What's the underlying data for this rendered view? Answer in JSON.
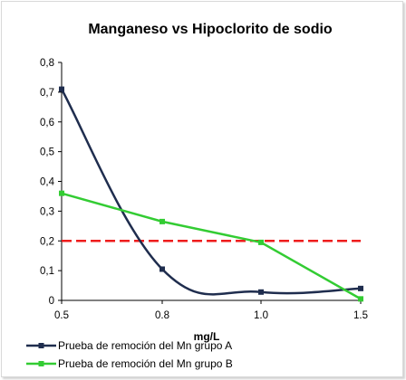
{
  "chart_data": {
    "type": "line",
    "title": "Manganeso vs Hipoclorito de sodio",
    "xlabel": "mg/L",
    "ylabel": "",
    "x_ticks": [
      "0.5",
      "0.8",
      "1.0",
      "1.5"
    ],
    "ylim": [
      0,
      0.8
    ],
    "y_ticks": [
      "0",
      "0,1",
      "0,2",
      "0,3",
      "0,4",
      "0,5",
      "0,6",
      "0,7",
      "0,8"
    ],
    "grid": false,
    "legend_position": "bottom",
    "series": [
      {
        "name": "Prueba de remoción del Mn grupo A",
        "color": "#1f2d4e",
        "marker": "square",
        "smooth": true,
        "x": [
          "0.5",
          "0.8",
          "1.0",
          "1.5"
        ],
        "y": [
          0.71,
          0.105,
          0.028,
          0.04
        ]
      },
      {
        "name": "Prueba de remoción del Mn grupo B",
        "color": "#33cc33",
        "marker": "square",
        "smooth": false,
        "x": [
          "0.5",
          "0.8",
          "1.0",
          "1.5"
        ],
        "y": [
          0.36,
          0.265,
          0.195,
          0.005
        ]
      }
    ],
    "reference_line": {
      "y": 0.2,
      "color": "#ee1c1c",
      "style": "dashed"
    }
  }
}
